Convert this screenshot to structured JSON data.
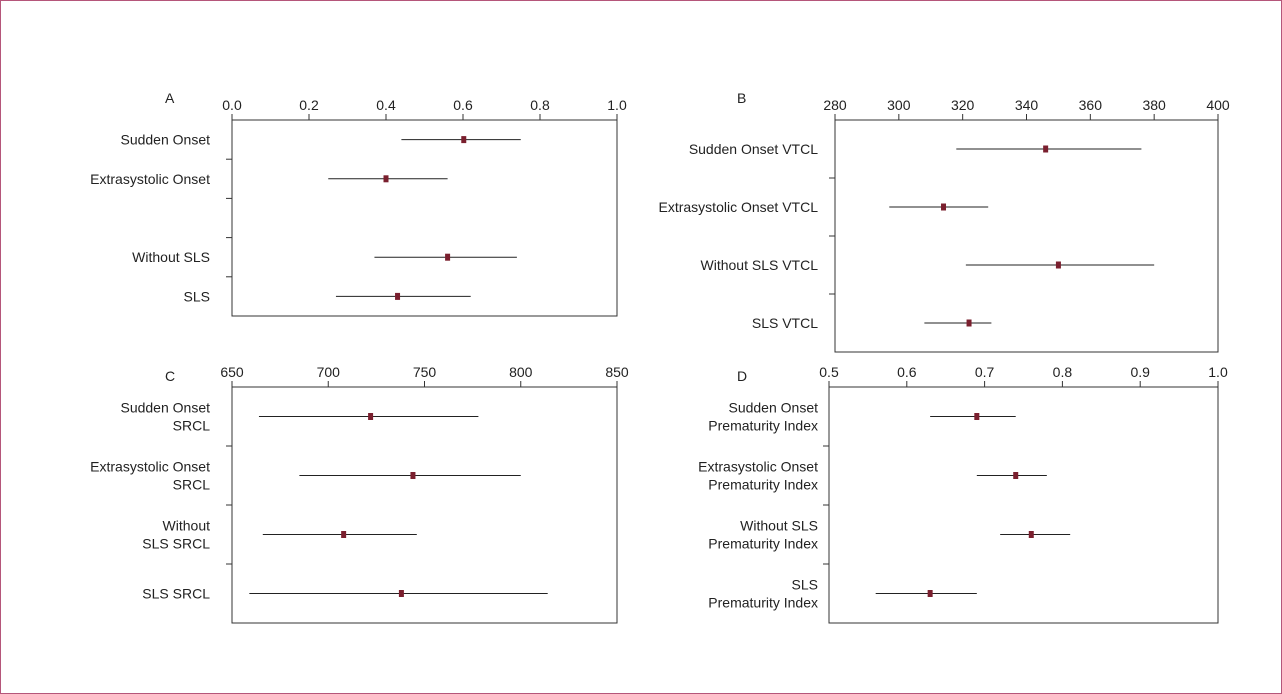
{
  "chart_data": [
    {
      "panel": "A",
      "type": "forest",
      "xlim": [
        0.0,
        1.0
      ],
      "ticks": [
        "0.0",
        "0.2",
        "0.4",
        "0.6",
        "0.8",
        "1.0"
      ],
      "tick_values": [
        0.0,
        0.2,
        0.4,
        0.6,
        0.8,
        1.0
      ],
      "rows": [
        {
          "label": [
            "Sudden Onset"
          ],
          "value": 0.602,
          "low": 0.44,
          "high": 0.75
        },
        {
          "label": [
            "Extrasystolic Onset"
          ],
          "value": 0.4,
          "low": 0.25,
          "high": 0.56
        },
        {
          "label": [
            "Without SLS"
          ],
          "value": 0.56,
          "low": 0.37,
          "high": 0.74
        },
        {
          "label": [
            "SLS"
          ],
          "value": 0.43,
          "low": 0.27,
          "high": 0.62
        }
      ],
      "row_slots": [
        0,
        1,
        3,
        4
      ],
      "slot_count": 5
    },
    {
      "panel": "B",
      "type": "forest",
      "xlim": [
        280,
        400
      ],
      "ticks": [
        "280",
        "300",
        "320",
        "340",
        "360",
        "380",
        "400"
      ],
      "tick_values": [
        280,
        300,
        320,
        340,
        360,
        380,
        400
      ],
      "rows": [
        {
          "label": [
            "Sudden Onset VTCL"
          ],
          "value": 346,
          "low": 318,
          "high": 376
        },
        {
          "label": [
            "Extrasystolic Onset VTCL"
          ],
          "value": 314,
          "low": 297,
          "high": 328
        },
        {
          "label": [
            "Without SLS VTCL"
          ],
          "value": 350,
          "low": 321,
          "high": 380
        },
        {
          "label": [
            "SLS VTCL"
          ],
          "value": 322,
          "low": 308,
          "high": 329
        }
      ],
      "row_slots": [
        0,
        1,
        2,
        3
      ],
      "slot_count": 4
    },
    {
      "panel": "C",
      "type": "forest",
      "xlim": [
        650,
        850
      ],
      "ticks": [
        "650",
        "700",
        "750",
        "800",
        "850"
      ],
      "tick_values": [
        650,
        700,
        750,
        800,
        850
      ],
      "rows": [
        {
          "label": [
            "Sudden Onset",
            "SRCL"
          ],
          "value": 722,
          "low": 664,
          "high": 778
        },
        {
          "label": [
            "Extrasystolic Onset",
            "SRCL"
          ],
          "value": 744,
          "low": 685,
          "high": 800
        },
        {
          "label": [
            "Without",
            "SLS SRCL"
          ],
          "value": 708,
          "low": 666,
          "high": 746
        },
        {
          "label": [
            "SLS SRCL"
          ],
          "value": 738,
          "low": 659,
          "high": 814
        }
      ],
      "row_slots": [
        0,
        1,
        2,
        3
      ],
      "slot_count": 4
    },
    {
      "panel": "D",
      "type": "forest",
      "xlim": [
        0.5,
        1.0
      ],
      "ticks": [
        "0.5",
        "0.6",
        "0.7",
        "0.8",
        "0.9",
        "1.0"
      ],
      "tick_values": [
        0.5,
        0.6,
        0.7,
        0.8,
        0.9,
        1.0
      ],
      "rows": [
        {
          "label": [
            "Sudden Onset",
            "Prematurity Index"
          ],
          "value": 0.69,
          "low": 0.63,
          "high": 0.74
        },
        {
          "label": [
            "Extrasystolic Onset",
            "Prematurity Index"
          ],
          "value": 0.74,
          "low": 0.69,
          "high": 0.78
        },
        {
          "label": [
            "Without SLS",
            "Prematurity Index"
          ],
          "value": 0.76,
          "low": 0.72,
          "high": 0.81
        },
        {
          "label": [
            "SLS",
            "Prematurity Index"
          ],
          "value": 0.63,
          "low": 0.56,
          "high": 0.69
        }
      ],
      "row_slots": [
        0,
        1,
        2,
        3
      ],
      "slot_count": 4
    }
  ],
  "colors": {
    "frame_border": "#b5567a",
    "marker": "#7a1f2e",
    "line": "#222222",
    "axis": "#333333"
  }
}
